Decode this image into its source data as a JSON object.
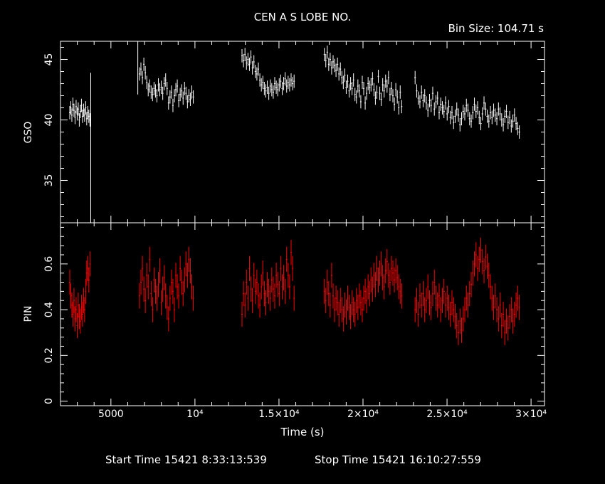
{
  "title": "CEN A S LOBE NO.",
  "bin_size_label": "Bin Size:  104.71  s",
  "footer": {
    "start_label": "Start Time 15421  8:33:13:539",
    "stop_label": "Stop Time 15421 16:10:27:559"
  },
  "colors": {
    "background": "#000000",
    "axes": "#ffffff",
    "gso": "#ffffff",
    "pin": "#ff0000"
  },
  "chart_data": [
    {
      "type": "scatter",
      "panel": "top",
      "ylabel": "GSO",
      "xlim": [
        2000,
        30800
      ],
      "ylim": [
        31.5,
        46.5
      ],
      "yticks": [
        35,
        40,
        45
      ],
      "series": [
        {
          "color": "#ffffff",
          "segments": [
            {
              "x0": 2550,
              "x1": 3750,
              "values": [
                40.6,
                41.0,
                40.4,
                41.3,
                40.8,
                40.2,
                41.1,
                40.5,
                40.9,
                40.0,
                40.7,
                41.2,
                40.3,
                40.8,
                40.4,
                41.0,
                40.1,
                40.6,
                40.3,
                40.0
              ]
            },
            {
              "x0": 6700,
              "x1": 9900,
              "values": [
                43.8,
                44.2,
                43.5,
                44.6,
                43.9,
                43.1,
                42.5,
                42.8,
                42.3,
                42.1,
                42.6,
                42.4,
                42.0,
                42.9,
                42.5,
                42.7,
                42.2,
                43.0,
                43.3,
                42.6,
                41.4,
                41.9,
                42.3,
                41.2,
                42.0,
                42.5,
                42.8,
                41.6,
                42.1,
                42.4,
                41.8,
                42.6,
                42.2,
                41.5,
                42.0,
                41.7,
                42.3,
                41.9
              ]
            },
            {
              "x0": 12800,
              "x1": 15900,
              "values": [
                45.3,
                44.9,
                45.4,
                44.7,
                45.0,
                44.6,
                45.2,
                44.3,
                44.8,
                44.0,
                43.8,
                44.2,
                43.3,
                42.9,
                43.1,
                42.6,
                42.4,
                42.7,
                42.2,
                42.8,
                42.5,
                42.3,
                43.0,
                42.7,
                42.5,
                42.9,
                43.2,
                42.6,
                43.0,
                43.4,
                42.8,
                43.1,
                42.9,
                43.3,
                43.0,
                43.2
              ]
            },
            {
              "x0": 17700,
              "x1": 22300,
              "values": [
                45.4,
                44.9,
                45.6,
                44.6,
                45.0,
                44.3,
                44.8,
                44.5,
                44.1,
                44.6,
                43.8,
                44.2,
                43.5,
                43.1,
                43.7,
                42.7,
                43.2,
                42.4,
                43.0,
                42.6,
                43.3,
                42.1,
                41.9,
                42.8,
                42.4,
                41.5,
                43.1,
                42.6,
                41.4,
                42.2,
                43.0,
                42.7,
                42.9,
                43.4,
                42.5,
                41.8,
                42.3,
                43.6,
                42.2,
                41.7,
                42.9,
                42.4,
                43.2,
                42.8,
                43.5,
                42.1,
                42.6,
                42.0,
                41.3,
                42.5,
                41.9,
                41.0,
                42.3,
                41.1
              ]
            },
            {
              "x0": 23100,
              "x1": 29300,
              "values": [
                43.5,
                42.4,
                41.8,
                41.5,
                42.3,
                41.6,
                42.0,
                41.4,
                40.8,
                41.6,
                41.2,
                42.2,
                40.9,
                41.5,
                41.8,
                40.6,
                41.3,
                41.0,
                40.7,
                41.4,
                40.5,
                41.1,
                40.2,
                40.6,
                39.8,
                40.3,
                40.9,
                40.4,
                39.6,
                40.1,
                40.7,
                40.5,
                41.2,
                40.8,
                40.1,
                39.9,
                40.6,
                41.3,
                40.7,
                41.0,
                40.2,
                39.7,
                40.5,
                41.4,
                40.9,
                40.3,
                39.9,
                40.6,
                40.2,
                40.8,
                40.4,
                40.1,
                40.9,
                40.5,
                40.0,
                39.6,
                40.3,
                40.7,
                39.8,
                40.2,
                39.5,
                39.9,
                40.4,
                39.7,
                39.3,
                39.0
              ]
            }
          ]
        }
      ]
    },
    {
      "type": "scatter",
      "panel": "bottom",
      "ylabel": "PIN",
      "xlabel": "Time (s)",
      "xlim": [
        2000,
        30800
      ],
      "ylim": [
        -0.02,
        0.78
      ],
      "yticks": [
        0,
        0.2,
        0.4,
        0.6
      ],
      "xticks": [
        {
          "value": 5000,
          "label": "5000"
        },
        {
          "value": 10000,
          "label": "10⁴"
        },
        {
          "value": 15000,
          "label": "1.5×10⁴"
        },
        {
          "value": 20000,
          "label": "2×10⁴"
        },
        {
          "value": 25000,
          "label": "2.5×10⁴"
        },
        {
          "value": 30000,
          "label": "3×10⁴"
        }
      ],
      "series": [
        {
          "color": "#ff0000",
          "segments": [
            {
              "x0": 2550,
              "x1": 3750,
              "values": [
                0.52,
                0.46,
                0.42,
                0.38,
                0.44,
                0.36,
                0.4,
                0.33,
                0.42,
                0.37,
                0.35,
                0.41,
                0.38,
                0.44,
                0.4,
                0.48,
                0.56,
                0.58,
                0.53,
                0.6
              ]
            },
            {
              "x0": 6700,
              "x1": 9900,
              "values": [
                0.46,
                0.52,
                0.58,
                0.49,
                0.44,
                0.55,
                0.5,
                0.62,
                0.47,
                0.4,
                0.53,
                0.48,
                0.45,
                0.51,
                0.57,
                0.43,
                0.49,
                0.54,
                0.46,
                0.41,
                0.36,
                0.45,
                0.52,
                0.48,
                0.4,
                0.55,
                0.5,
                0.46,
                0.58,
                0.52,
                0.47,
                0.53,
                0.6,
                0.55,
                0.62,
                0.57,
                0.5,
                0.45
              ]
            },
            {
              "x0": 12800,
              "x1": 15900,
              "values": [
                0.38,
                0.47,
                0.42,
                0.52,
                0.45,
                0.58,
                0.49,
                0.44,
                0.55,
                0.48,
                0.52,
                0.46,
                0.42,
                0.5,
                0.56,
                0.47,
                0.43,
                0.51,
                0.48,
                0.45,
                0.53,
                0.49,
                0.46,
                0.55,
                0.51,
                0.47,
                0.58,
                0.5,
                0.54,
                0.48,
                0.62,
                0.55,
                0.5,
                0.65,
                0.58,
                0.45
              ]
            },
            {
              "x0": 17700,
              "x1": 22300,
              "values": [
                0.48,
                0.44,
                0.52,
                0.47,
                0.42,
                0.55,
                0.46,
                0.4,
                0.45,
                0.43,
                0.38,
                0.44,
                0.4,
                0.36,
                0.42,
                0.39,
                0.45,
                0.41,
                0.37,
                0.43,
                0.4,
                0.38,
                0.44,
                0.41,
                0.46,
                0.43,
                0.4,
                0.45,
                0.48,
                0.44,
                0.5,
                0.47,
                0.53,
                0.49,
                0.55,
                0.51,
                0.58,
                0.53,
                0.56,
                0.6,
                0.54,
                0.5,
                0.57,
                0.61,
                0.55,
                0.52,
                0.58,
                0.56,
                0.53,
                0.57,
                0.54,
                0.5,
                0.48,
                0.46
              ]
            },
            {
              "x0": 23100,
              "x1": 29300,
              "values": [
                0.4,
                0.44,
                0.38,
                0.46,
                0.42,
                0.47,
                0.4,
                0.44,
                0.5,
                0.43,
                0.41,
                0.47,
                0.52,
                0.45,
                0.42,
                0.46,
                0.4,
                0.44,
                0.48,
                0.42,
                0.45,
                0.41,
                0.38,
                0.43,
                0.4,
                0.37,
                0.33,
                0.3,
                0.35,
                0.31,
                0.36,
                0.4,
                0.45,
                0.42,
                0.47,
                0.51,
                0.56,
                0.6,
                0.64,
                0.58,
                0.62,
                0.66,
                0.61,
                0.57,
                0.63,
                0.59,
                0.55,
                0.5,
                0.45,
                0.41,
                0.46,
                0.4,
                0.36,
                0.42,
                0.33,
                0.38,
                0.3,
                0.35,
                0.32,
                0.37,
                0.4,
                0.35,
                0.38,
                0.42,
                0.45,
                0.41
              ]
            }
          ]
        }
      ]
    }
  ]
}
